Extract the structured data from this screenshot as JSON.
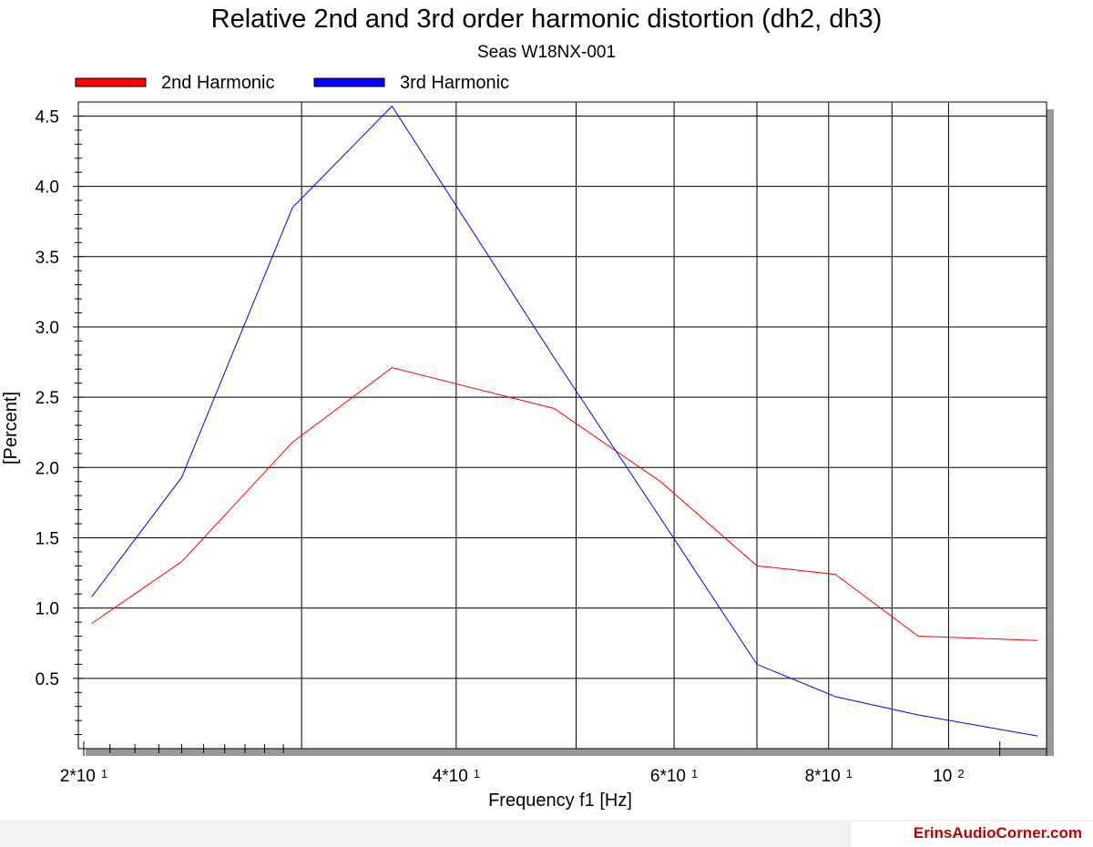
{
  "chart_data": {
    "type": "line",
    "title": "Relative 2nd and 3rd order harmonic distortion (dh2, dh3)",
    "subtitle": "Seas W18NX-001",
    "xlabel": "Frequency f1  [Hz]",
    "ylabel": "[Percent]",
    "x_scale": "log",
    "xlim": [
      19.8,
      120
    ],
    "ylim": [
      0,
      4.6
    ],
    "grid": true,
    "legend_position": "top-left",
    "x_ticks": [
      {
        "value": 20,
        "mantissa": "2*10",
        "exponent": "1"
      },
      {
        "value": 40,
        "mantissa": "4*10",
        "exponent": "1"
      },
      {
        "value": 60,
        "mantissa": "6*10",
        "exponent": "1"
      },
      {
        "value": 80,
        "mantissa": "8*10",
        "exponent": "1"
      },
      {
        "value": 100,
        "mantissa": "10",
        "exponent": "2"
      }
    ],
    "x_grid_values": [
      30,
      40,
      50,
      60,
      70,
      80,
      90,
      100
    ],
    "y_ticks": [
      {
        "value": 0.5,
        "label": "0.5"
      },
      {
        "value": 1.0,
        "label": "1.0"
      },
      {
        "value": 1.5,
        "label": "1.5"
      },
      {
        "value": 2.0,
        "label": "2.0"
      },
      {
        "value": 2.5,
        "label": "2.5"
      },
      {
        "value": 3.0,
        "label": "3.0"
      },
      {
        "value": 3.5,
        "label": "3.5"
      },
      {
        "value": 4.0,
        "label": "4.0"
      },
      {
        "value": 4.5,
        "label": "4.5"
      }
    ],
    "series": [
      {
        "name": "2nd Harmonic",
        "color": "#ff0000",
        "x": [
          20.3,
          24.0,
          29.5,
          35.5,
          48.0,
          58.5,
          70.0,
          81.0,
          94.5,
          118.0
        ],
        "y": [
          0.89,
          1.33,
          2.18,
          2.71,
          2.42,
          1.9,
          1.3,
          1.24,
          0.8,
          0.77
        ]
      },
      {
        "name": "3rd Harmonic",
        "color": "#0000ff",
        "x": [
          20.3,
          24.0,
          29.5,
          35.5,
          48.0,
          58.5,
          70.0,
          81.0,
          94.5,
          118.0
        ],
        "y": [
          1.08,
          1.93,
          3.85,
          4.57,
          2.78,
          1.64,
          0.6,
          0.37,
          0.24,
          0.09
        ]
      }
    ]
  },
  "watermark": "ErinsAudioCorner.com"
}
